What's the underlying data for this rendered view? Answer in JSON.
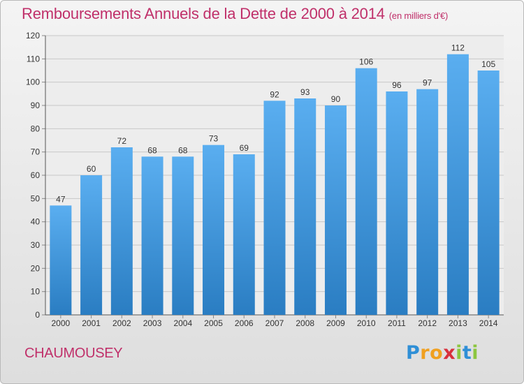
{
  "header": {
    "title": "Remboursements Annuels de la Dette de 2000 à 2014",
    "unit": "(en milliers d'€)"
  },
  "footer": {
    "commune": "CHAUMOUSEY",
    "brand": "Proxiti"
  },
  "colors": {
    "title": "#c0306a",
    "bar_top": "#5aaef0",
    "bar_bottom": "#2a7dc2",
    "grid": "#c8c8c8",
    "axis_text": "#333333"
  },
  "chart_data": {
    "type": "bar",
    "title": "Remboursements Annuels de la Dette de 2000 à 2014",
    "xlabel": "",
    "ylabel": "",
    "unit": "en milliers d'€",
    "categories": [
      "2000",
      "2001",
      "2002",
      "2003",
      "2004",
      "2005",
      "2006",
      "2007",
      "2008",
      "2009",
      "2010",
      "2011",
      "2012",
      "2013",
      "2014"
    ],
    "values": [
      47,
      60,
      72,
      68,
      68,
      73,
      69,
      92,
      93,
      90,
      106,
      96,
      97,
      112,
      105
    ],
    "ylim": [
      0,
      120
    ],
    "yticks": [
      0,
      10,
      20,
      30,
      40,
      50,
      60,
      70,
      80,
      90,
      100,
      110,
      120
    ],
    "grid": true,
    "legend": "none"
  }
}
